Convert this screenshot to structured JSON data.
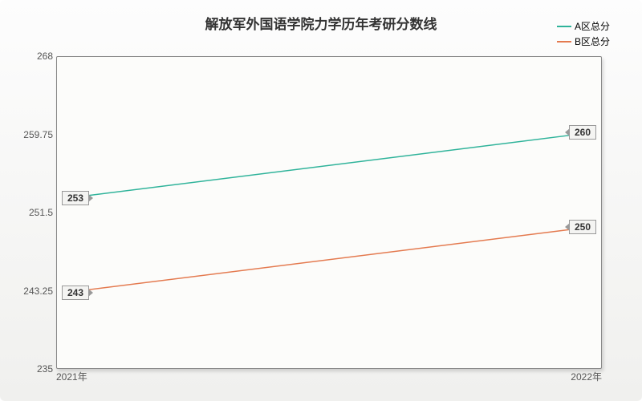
{
  "chart": {
    "type": "line",
    "title": "解放军外国语学院力学历年考研分数线",
    "title_fontsize": 17,
    "background_gradient": [
      "#fdfdfd",
      "#f0f0ee"
    ],
    "plot_background": "#fcfcfa",
    "border_color": "#888",
    "x": {
      "categories": [
        "2021年",
        "2022年"
      ],
      "label_fontsize": 12
    },
    "y": {
      "min": 235,
      "max": 268,
      "ticks": [
        235,
        243.25,
        251.5,
        259.75,
        268
      ],
      "label_fontsize": 12,
      "axis_color": "#555"
    },
    "series": [
      {
        "name": "A区总分",
        "color": "#2fb39a",
        "data": [
          253,
          260
        ],
        "line_width": 1.5
      },
      {
        "name": "B区总分",
        "color": "#e47a4f",
        "data": [
          243,
          250
        ],
        "line_width": 1.5
      }
    ],
    "legend": {
      "position": "top-right",
      "fontsize": 12
    },
    "callout_labels": {
      "a_left": "253",
      "a_right": "260",
      "b_left": "243",
      "b_right": "250"
    }
  }
}
